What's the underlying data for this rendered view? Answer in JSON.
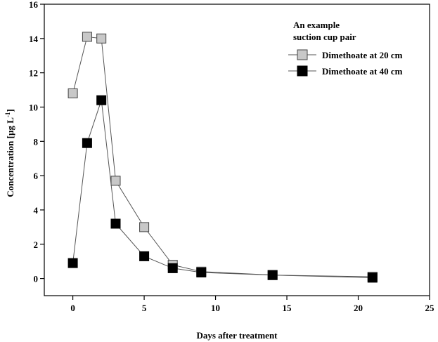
{
  "chart_data": {
    "type": "line",
    "title": "",
    "xlabel": "Days after treatment",
    "ylabel": "Concentration [µg L",
    "ylabel_superscript": "-1",
    "ylabel_suffix": "]",
    "xlim": [
      -2,
      25
    ],
    "ylim": [
      -1,
      16
    ],
    "xticks": [
      0,
      5,
      10,
      15,
      20,
      25
    ],
    "yticks": [
      0,
      2,
      4,
      6,
      8,
      10,
      12,
      14,
      16
    ],
    "grid": false,
    "legend": {
      "placement": "top-right",
      "title_lines": [
        "An example",
        "suction cup pair"
      ]
    },
    "series": [
      {
        "name": "Dimethoate at 20 cm",
        "marker": "square",
        "fill": "#c8c8c8",
        "x": [
          0,
          1,
          2,
          3,
          5,
          7,
          9,
          14,
          21
        ],
        "y": [
          10.8,
          14.1,
          14.0,
          5.7,
          3.0,
          0.8,
          0.4,
          0.2,
          0.1
        ]
      },
      {
        "name": "Dimethoate at 40 cm",
        "marker": "square",
        "fill": "#000000",
        "x": [
          0,
          1,
          2,
          3,
          5,
          7,
          9,
          14,
          21
        ],
        "y": [
          0.9,
          7.9,
          10.4,
          3.2,
          1.3,
          0.6,
          0.35,
          0.2,
          0.05
        ]
      }
    ]
  }
}
